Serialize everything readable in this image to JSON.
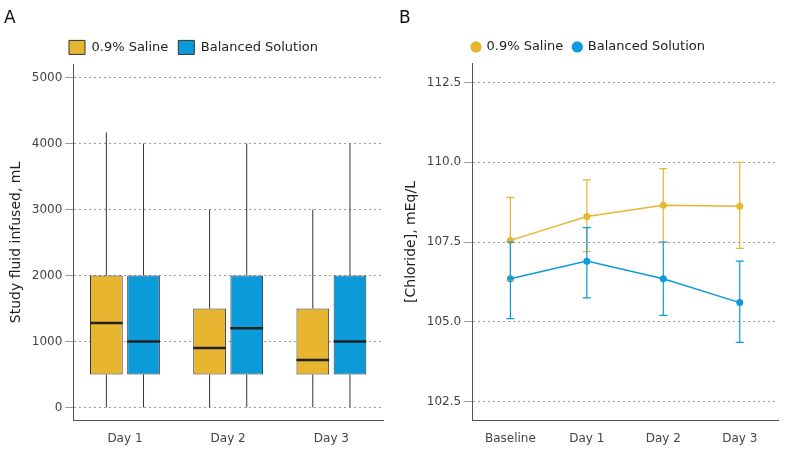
{
  "chart_data": [
    {
      "type": "box",
      "title": "A",
      "categories": [
        "Day 1",
        "Day 2",
        "Day 3"
      ],
      "y_label": "Study fluid infused, mL",
      "ylim": [
        -200,
        5200
      ],
      "yticks": [
        0,
        1000,
        2000,
        3000,
        4000,
        5000
      ],
      "grid": true,
      "legend": "top",
      "series": [
        {
          "name": "0.9% Saline",
          "color": "#E8B530",
          "min": [
            0,
            0,
            0
          ],
          "q1": [
            500,
            500,
            500
          ],
          "median": [
            1280,
            900,
            720
          ],
          "q3": [
            2000,
            1500,
            1500
          ],
          "max": [
            4170,
            3000,
            3000
          ]
        },
        {
          "name": "Balanced Solution",
          "color": "#0C9BDA",
          "min": [
            0,
            0,
            0
          ],
          "q1": [
            500,
            500,
            500
          ],
          "median": [
            1000,
            1200,
            1000
          ],
          "q3": [
            2000,
            2000,
            2000
          ],
          "max": [
            4000,
            4000,
            4000
          ]
        }
      ]
    },
    {
      "type": "line",
      "title": "B",
      "categories": [
        "Baseline",
        "Day 1",
        "Day 2",
        "Day 3"
      ],
      "y_label": "[Chloride], mEq/L",
      "ylim": [
        101.9,
        113.1
      ],
      "yticks": [
        {
          "value": 102.5,
          "label": "102.5"
        },
        {
          "value": 105,
          "label": "105.0"
        },
        {
          "value": 107.5,
          "label": "107.5"
        },
        {
          "value": 110,
          "label": "110.0"
        },
        {
          "value": 112.5,
          "label": "112.5"
        }
      ],
      "grid": true,
      "legend": "top",
      "series": [
        {
          "name": "0.9% Saline",
          "color": "#E8B530",
          "marker": "circle",
          "line_style": "solid",
          "values": [
            107.55,
            108.3,
            108.65,
            108.62
          ],
          "lower": [
            106.3,
            107.2,
            107.5,
            107.3
          ],
          "upper": [
            108.9,
            109.45,
            109.8,
            110.0
          ]
        },
        {
          "name": "Balanced Solution",
          "color": "#0C9BDA",
          "marker": "circle",
          "line_style": "solid",
          "values": [
            106.35,
            106.9,
            106.35,
            105.6
          ],
          "lower": [
            105.1,
            105.75,
            105.2,
            104.35
          ],
          "upper": [
            107.5,
            107.95,
            107.5,
            106.9
          ]
        }
      ]
    }
  ]
}
